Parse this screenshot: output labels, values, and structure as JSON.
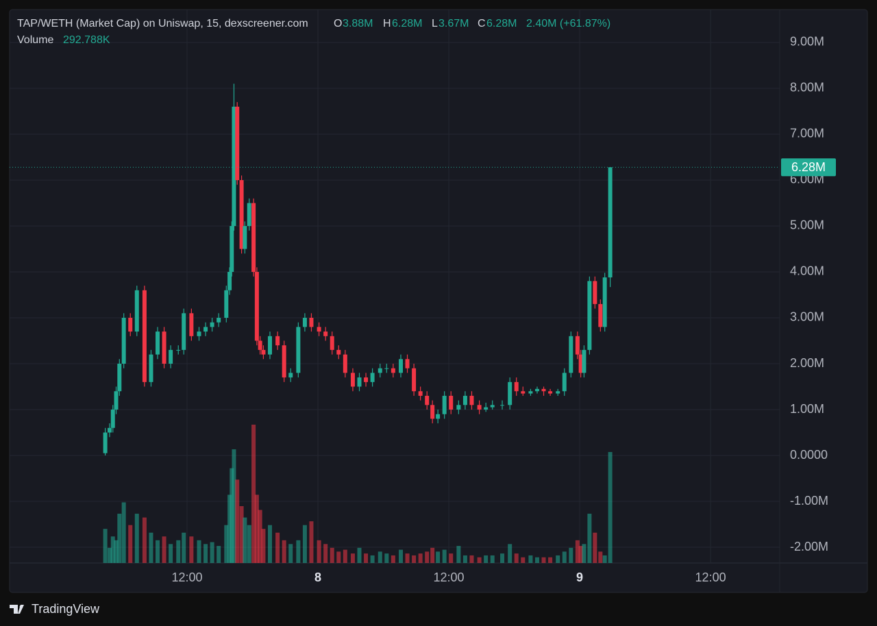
{
  "chart_data": {
    "type": "candlestick",
    "title": "TAP/WETH (Market Cap) on Uniswap, 15, dexscreener.com",
    "legend": {
      "o_label": "O",
      "o": "3.88M",
      "h_label": "H",
      "h": "6.28M",
      "l_label": "L",
      "l": "3.67M",
      "c_label": "C",
      "c": "6.28M",
      "change": "2.40M (+61.87%)"
    },
    "volume_label": "Volume",
    "volume_value": "292.788K",
    "up_color": "#22ab94",
    "down_color": "#f23645",
    "grid": true,
    "xlim": [
      -4.27,
      66.34
    ],
    "xticks": [
      {
        "value": 12,
        "label": "12:00"
      },
      {
        "value": 24,
        "label": "8"
      },
      {
        "value": 36,
        "label": "12:00"
      },
      {
        "value": 48,
        "label": "9"
      },
      {
        "value": 60,
        "label": "12:00"
      }
    ],
    "ylim": [
      -2.343,
      9.716
    ],
    "yticks": [
      {
        "value": -2,
        "label": "-2.00M"
      },
      {
        "value": -1,
        "label": "-1.00M"
      },
      {
        "value": 0,
        "label": "0.0000"
      },
      {
        "value": 1,
        "label": "1.00M"
      },
      {
        "value": 2,
        "label": "2.00M"
      },
      {
        "value": 3,
        "label": "3.00M"
      },
      {
        "value": 4,
        "label": "4.00M"
      },
      {
        "value": 5,
        "label": "5.00M"
      },
      {
        "value": 6,
        "label": "6.00M"
      },
      {
        "value": 7,
        "label": "7.00M"
      },
      {
        "value": 8,
        "label": "8.00M"
      },
      {
        "value": 9,
        "label": "9.00M"
      }
    ],
    "price_line": {
      "value": 6.28,
      "label": "6.28M"
    },
    "volume_lim": [
      0,
      1460
    ],
    "x": [
      4.5,
      4.9,
      5.2,
      5.5,
      5.8,
      6.2,
      6.8,
      7.4,
      8.1,
      8.7,
      9.3,
      9.9,
      10.5,
      11.2,
      11.7,
      12.4,
      13.1,
      13.7,
      14.3,
      14.9,
      15.6,
      15.9,
      16.1,
      16.3,
      16.6,
      17.0,
      17.3,
      17.7,
      18.1,
      18.4,
      18.7,
      19.0,
      19.6,
      20.3,
      20.9,
      21.5,
      22.2,
      22.8,
      23.4,
      24.1,
      24.7,
      25.3,
      25.9,
      26.5,
      27.2,
      27.8,
      28.4,
      29.0,
      29.7,
      30.3,
      30.9,
      31.6,
      32.2,
      32.8,
      33.4,
      34.0,
      34.5,
      35.0,
      35.6,
      36.2,
      36.9,
      37.5,
      38.1,
      38.8,
      39.4,
      40.0,
      40.9,
      41.6,
      42.2,
      42.8,
      43.5,
      44.1,
      44.7,
      45.3,
      46.0,
      46.6,
      47.2,
      47.8,
      48.1,
      48.4,
      48.9,
      49.4,
      49.9,
      50.3,
      50.8
    ],
    "open": [
      0.05,
      0.5,
      0.6,
      1.0,
      1.4,
      2.0,
      3.0,
      2.7,
      3.6,
      1.6,
      2.2,
      2.7,
      2.0,
      2.3,
      2.3,
      3.1,
      2.6,
      2.7,
      2.8,
      2.9,
      3.0,
      3.6,
      4.0,
      5.0,
      7.6,
      6.0,
      4.5,
      5.0,
      5.5,
      4.0,
      2.5,
      2.3,
      2.2,
      2.6,
      2.4,
      1.7,
      1.8,
      2.8,
      3.0,
      2.8,
      2.7,
      2.6,
      2.3,
      2.2,
      1.8,
      1.5,
      1.7,
      1.6,
      1.8,
      1.9,
      1.9,
      1.8,
      2.1,
      1.9,
      1.4,
      1.3,
      1.1,
      0.8,
      0.9,
      1.3,
      1.0,
      1.1,
      1.3,
      1.1,
      1.0,
      1.05,
      1.1,
      1.1,
      1.6,
      1.4,
      1.35,
      1.4,
      1.45,
      1.4,
      1.35,
      1.4,
      1.8,
      2.6,
      2.2,
      1.8,
      2.3,
      3.8,
      3.3,
      2.8,
      3.88
    ],
    "high": [
      0.6,
      0.7,
      1.1,
      1.5,
      2.1,
      3.1,
      3.1,
      3.7,
      3.7,
      2.3,
      2.8,
      2.8,
      2.4,
      2.4,
      3.2,
      3.2,
      2.8,
      2.9,
      3.0,
      3.1,
      3.7,
      4.1,
      5.1,
      8.1,
      7.7,
      6.1,
      5.1,
      5.6,
      5.6,
      4.1,
      2.6,
      2.4,
      2.7,
      2.7,
      2.5,
      1.9,
      2.9,
      3.1,
      3.1,
      2.9,
      2.8,
      2.7,
      2.4,
      2.3,
      1.9,
      1.8,
      1.8,
      1.9,
      2.0,
      2.0,
      2.0,
      2.2,
      2.2,
      2.0,
      1.5,
      1.4,
      1.2,
      1.0,
      1.4,
      1.4,
      1.2,
      1.4,
      1.4,
      1.2,
      1.15,
      1.2,
      1.2,
      1.7,
      1.7,
      1.5,
      1.45,
      1.5,
      1.5,
      1.45,
      1.45,
      1.9,
      2.7,
      2.7,
      2.3,
      2.4,
      3.9,
      3.9,
      3.4,
      3.98,
      6.28
    ],
    "low": [
      0.0,
      0.4,
      0.5,
      0.9,
      1.3,
      1.9,
      2.6,
      2.6,
      1.5,
      1.5,
      2.1,
      1.9,
      1.9,
      2.2,
      2.2,
      2.5,
      2.5,
      2.6,
      2.7,
      2.8,
      2.9,
      3.5,
      3.9,
      4.9,
      5.9,
      4.4,
      4.4,
      4.9,
      3.9,
      2.4,
      2.2,
      2.1,
      2.1,
      2.3,
      1.6,
      1.6,
      1.7,
      2.7,
      2.7,
      2.6,
      2.5,
      2.2,
      2.1,
      1.7,
      1.4,
      1.4,
      1.5,
      1.5,
      1.7,
      1.8,
      1.7,
      1.7,
      1.8,
      1.3,
      1.2,
      1.0,
      0.7,
      0.7,
      0.8,
      0.9,
      0.9,
      1.0,
      1.0,
      0.9,
      0.95,
      1.0,
      1.0,
      1.0,
      1.3,
      1.3,
      1.3,
      1.35,
      1.3,
      1.3,
      1.3,
      1.3,
      1.7,
      2.1,
      1.7,
      1.7,
      2.2,
      3.2,
      2.7,
      2.7,
      3.67
    ],
    "close": [
      0.5,
      0.6,
      1.0,
      1.4,
      2.0,
      3.0,
      2.7,
      3.6,
      1.6,
      2.2,
      2.7,
      2.0,
      2.3,
      2.3,
      3.1,
      2.6,
      2.7,
      2.8,
      2.9,
      3.0,
      3.6,
      4.0,
      5.0,
      7.6,
      6.0,
      4.5,
      5.0,
      5.5,
      4.0,
      2.5,
      2.3,
      2.2,
      2.6,
      2.4,
      1.7,
      1.8,
      2.8,
      3.0,
      2.8,
      2.7,
      2.6,
      2.3,
      2.2,
      1.8,
      1.5,
      1.7,
      1.6,
      1.8,
      1.9,
      1.9,
      1.8,
      2.1,
      1.9,
      1.4,
      1.3,
      1.1,
      0.8,
      0.9,
      1.3,
      1.0,
      1.1,
      1.3,
      1.1,
      1.0,
      1.05,
      1.1,
      1.1,
      1.6,
      1.4,
      1.35,
      1.4,
      1.45,
      1.4,
      1.35,
      1.4,
      1.8,
      2.6,
      2.2,
      1.8,
      2.3,
      3.8,
      3.3,
      2.8,
      3.88,
      6.28
    ],
    "volume": [
      90,
      40,
      70,
      60,
      130,
      160,
      100,
      130,
      120,
      80,
      60,
      70,
      50,
      60,
      80,
      70,
      60,
      50,
      55,
      45,
      100,
      180,
      250,
      300,
      220,
      150,
      120,
      100,
      365,
      180,
      140,
      90,
      100,
      80,
      60,
      50,
      60,
      100,
      110,
      60,
      50,
      40,
      30,
      35,
      25,
      40,
      25,
      20,
      30,
      25,
      20,
      35,
      25,
      20,
      25,
      30,
      40,
      30,
      35,
      25,
      45,
      20,
      20,
      15,
      20,
      20,
      25,
      50,
      25,
      15,
      20,
      15,
      15,
      15,
      20,
      30,
      40,
      60,
      45,
      50,
      130,
      80,
      30,
      20,
      292.788
    ]
  },
  "footer": {
    "brand": "TradingView"
  }
}
